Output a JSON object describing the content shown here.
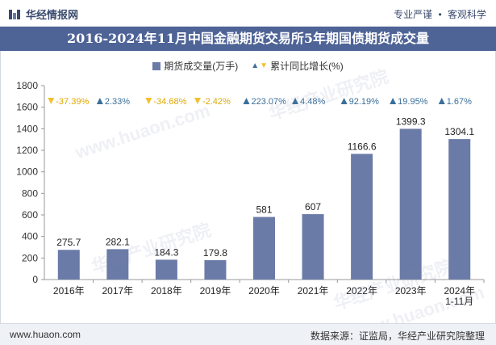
{
  "header": {
    "brand": "华经情报网",
    "tag1": "专业严谨",
    "tag_sep": "•",
    "tag2": "客观科学"
  },
  "title": "2016-2024年11月中国金融期货交易所5年期国债期货成交量",
  "legend": {
    "bar_label": "期货成交量(万手)",
    "line_label": "累计同比增长(%)"
  },
  "footer": {
    "site": "www.huaon.com",
    "source": "数据来源：证监局，华经产业研究院整理"
  },
  "watermarks": [
    "华经产业研究院",
    "www.huaon.com"
  ],
  "colors": {
    "bar": "#6b7ba7",
    "title_bg": "#4e6396",
    "up": "#3a6f9a",
    "down": "#f2c12e"
  },
  "chart_data": {
    "type": "bar",
    "categories": [
      "2016年",
      "2017年",
      "2018年",
      "2019年",
      "2020年",
      "2021年",
      "2022年",
      "2023年",
      "2024年\n1-11月"
    ],
    "series": [
      {
        "name": "期货成交量(万手)",
        "values": [
          275.7,
          282.1,
          184.3,
          179.8,
          581,
          607,
          1166.6,
          1399.3,
          1304.1
        ],
        "labels": [
          "275.7",
          "282.1",
          "184.3",
          "179.8",
          "581",
          "607",
          "1166.6",
          "1399.3",
          "1304.1"
        ]
      },
      {
        "name": "累计同比增长(%)",
        "values": [
          -37.39,
          2.33,
          -34.68,
          -2.42,
          223.07,
          4.48,
          92.19,
          19.95,
          1.67
        ],
        "labels": [
          "-37.39%",
          "2.33%",
          "-34.68%",
          "-2.42%",
          "223.07%",
          "4.48%",
          "92.19%",
          "19.95%",
          "1.67%"
        ]
      }
    ],
    "ylim": [
      0,
      1800
    ],
    "yticks": [
      0,
      200,
      400,
      600,
      800,
      1000,
      1200,
      1400,
      1600,
      1800
    ],
    "grid": false,
    "legend_position": "top-center"
  }
}
